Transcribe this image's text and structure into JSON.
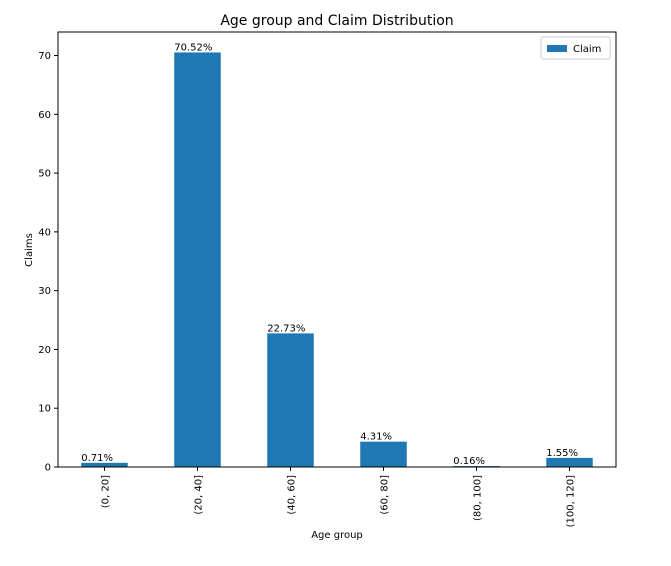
{
  "chart_data": {
    "type": "bar",
    "title": "Age group and Claim Distribution",
    "xlabel": "Age group",
    "ylabel": "Claims",
    "categories": [
      "(0, 20]",
      "(20, 40]",
      "(40, 60]",
      "(60, 80]",
      "(80, 100]",
      "(100, 120]"
    ],
    "series": [
      {
        "name": "Claim",
        "values": [
          0.71,
          70.52,
          22.73,
          4.31,
          0.16,
          1.55
        ],
        "labels": [
          "0.71%",
          "70.52%",
          "22.73%",
          "4.31%",
          "0.16%",
          "1.55%"
        ]
      }
    ],
    "ylim": [
      0,
      74
    ],
    "yticks": [
      0,
      10,
      20,
      30,
      40,
      50,
      60,
      70
    ],
    "grid": false,
    "legend_position": "top-right",
    "bar_color": "#1f77b4"
  }
}
